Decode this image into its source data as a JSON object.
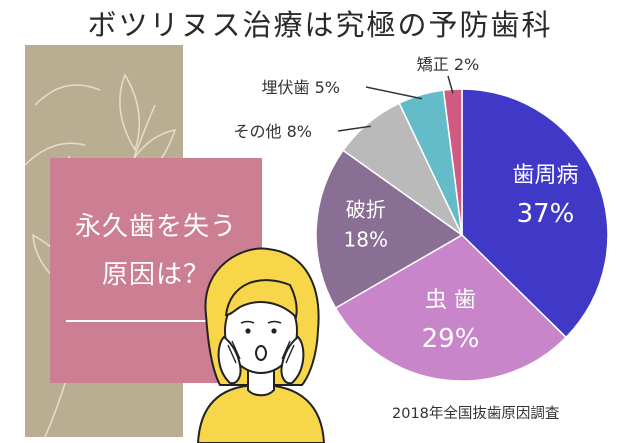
{
  "title": "ボツリヌス治療は究極の予防歯科",
  "headline": {
    "line1": "永久歯を失う",
    "line2": "原因は？"
  },
  "source": "2018年全国抜歯原因調査",
  "chart_data": {
    "type": "pie",
    "slices": [
      {
        "label": "歯周病",
        "value": 37,
        "value_label": "37%",
        "color": "#4039c8",
        "label_position": "inside"
      },
      {
        "label": "虫 歯",
        "value": 29,
        "value_label": "29%",
        "color": "#c885c9",
        "label_position": "inside"
      },
      {
        "label": "破折",
        "value": 18,
        "value_label": "18%",
        "color": "#8a6f95",
        "label_position": "inside"
      },
      {
        "label": "その他",
        "value": 8,
        "value_label": "8%",
        "color": "#bababa",
        "label_position": "outside"
      },
      {
        "label": "埋伏歯",
        "value": 5,
        "value_label": "5%",
        "color": "#64bcc8",
        "label_position": "outside"
      },
      {
        "label": "矯正",
        "value": 2,
        "value_label": "2%",
        "color": "#cf5a82",
        "label_position": "outside"
      }
    ],
    "start_angle_deg": 0,
    "direction": "clockwise"
  }
}
